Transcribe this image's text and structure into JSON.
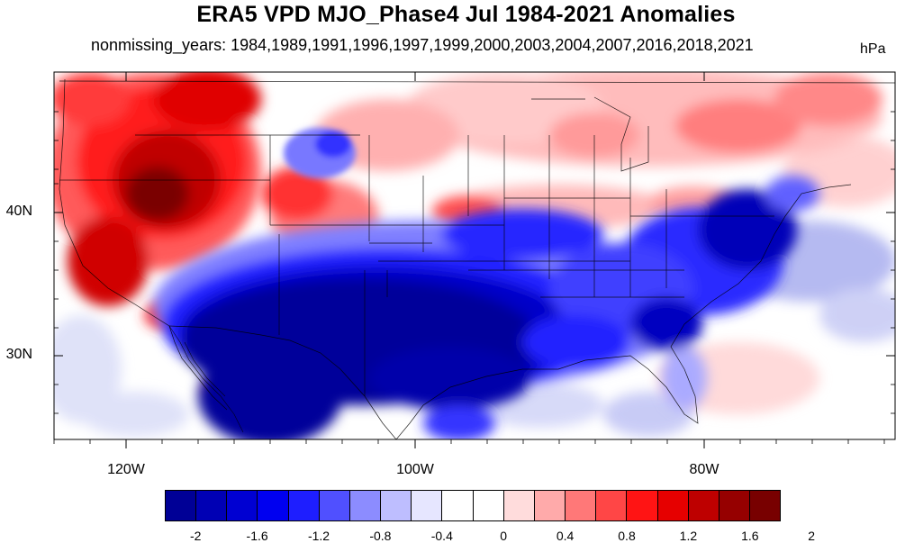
{
  "header": {
    "title": "ERA5 VPD MJO_Phase4 Jul 1984-2021 Anomalies",
    "subtitle": "nonmissing_years: 1984,1989,1991,1996,1997,1999,2000,2003,2004,2007,2016,2018,2021",
    "units": "hPa"
  },
  "axes": {
    "lat_labels": [
      {
        "label": "40N",
        "value": 40
      },
      {
        "label": "30N",
        "value": 30
      }
    ],
    "lon_labels": [
      {
        "label": "120W",
        "value": -120
      },
      {
        "label": "100W",
        "value": -100
      },
      {
        "label": "80W",
        "value": -80
      }
    ],
    "lon_range": [
      -125,
      -67
    ],
    "lat_range": [
      24,
      50
    ]
  },
  "colorbar": {
    "colors": [
      "#000096",
      "#0000b4",
      "#0000d2",
      "#0000f0",
      "#1e1eff",
      "#5050ff",
      "#8c8cff",
      "#bebeff",
      "#e6e6ff",
      "#ffffff",
      "#ffffff",
      "#ffdcdc",
      "#ffaaaa",
      "#ff7878",
      "#ff4646",
      "#ff1414",
      "#e60000",
      "#be0000",
      "#960000",
      "#780000"
    ],
    "labels": [
      "-2",
      "-1.6",
      "-1.2",
      "-0.8",
      "-0.4",
      "0",
      "0.4",
      "0.8",
      "1.2",
      "1.6",
      "2"
    ]
  }
}
